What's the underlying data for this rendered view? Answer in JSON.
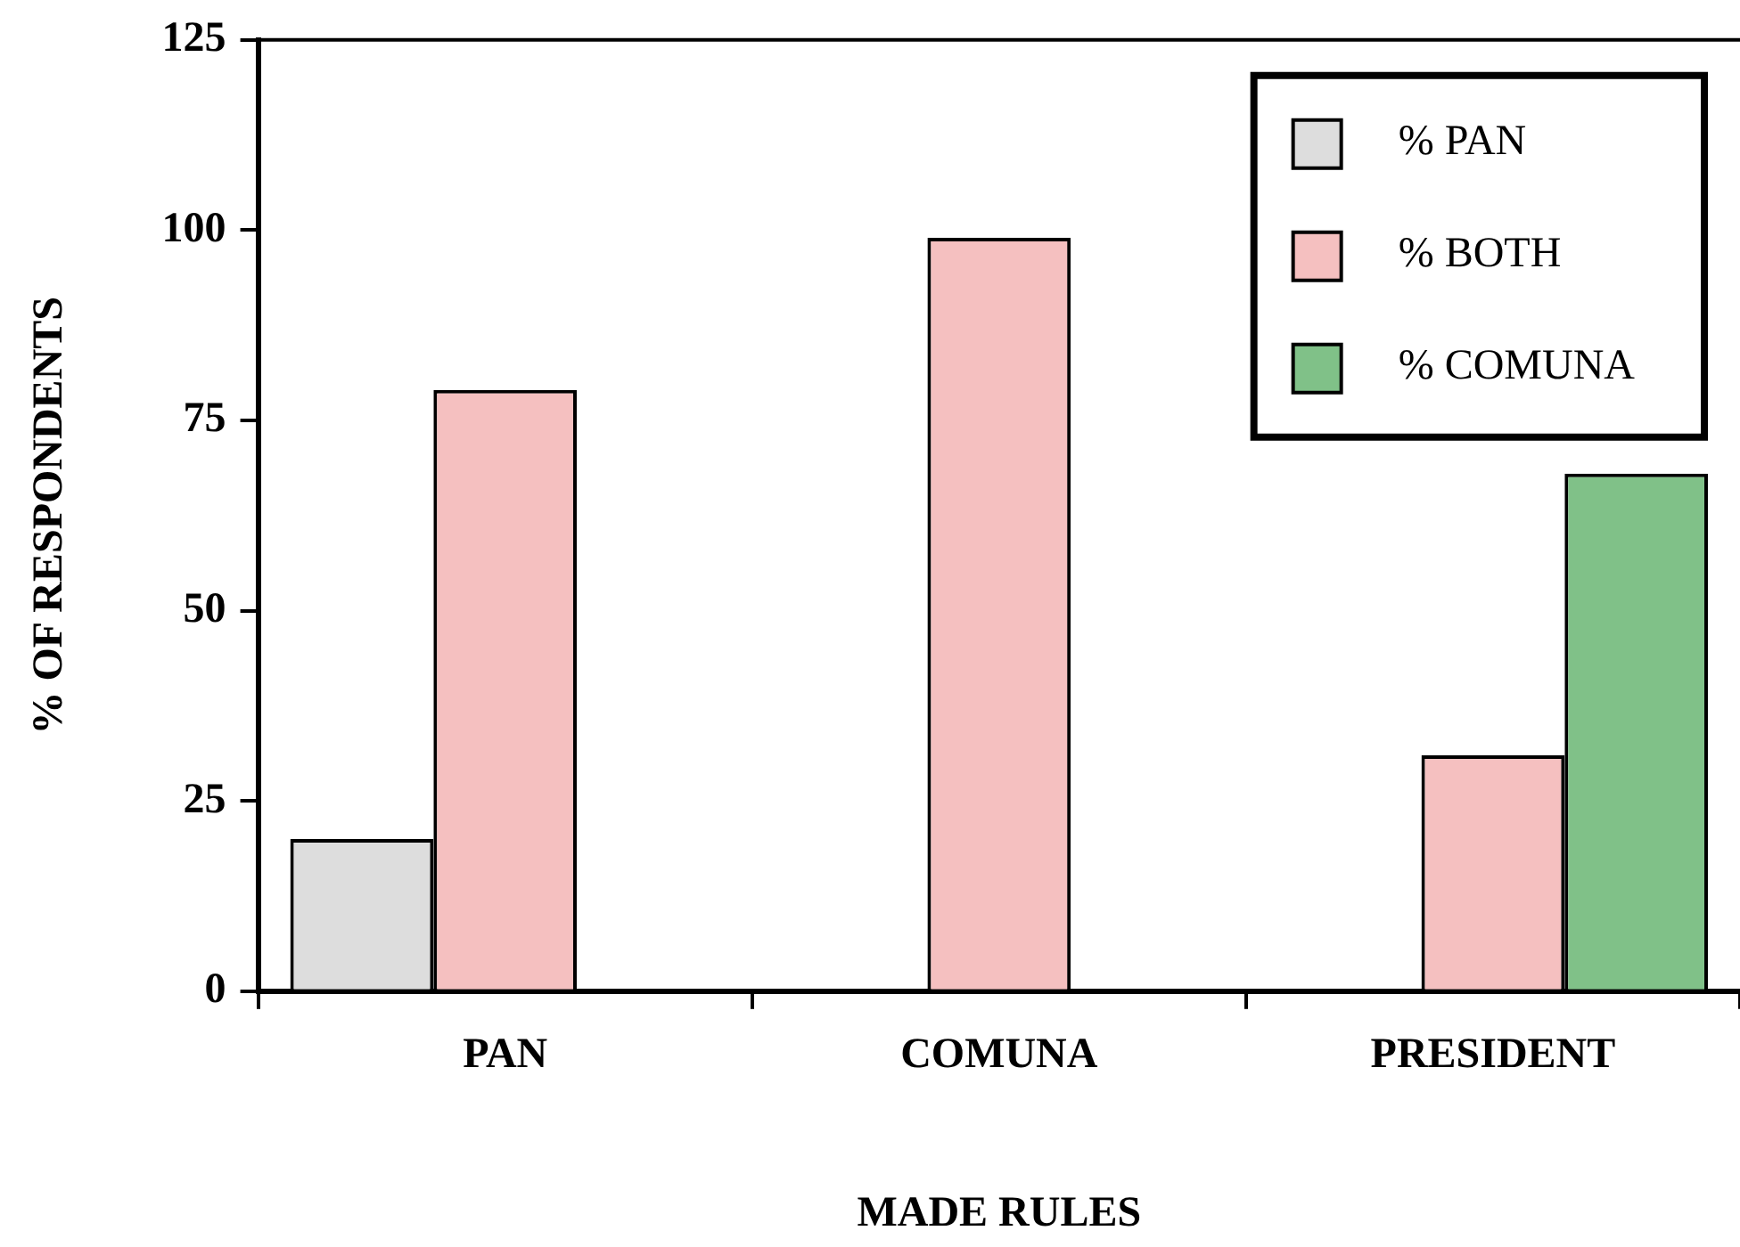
{
  "chart_data": {
    "type": "bar",
    "xlabel": "MADE RULES",
    "ylabel": "% OF RESPONDENTS",
    "categories": [
      "PAN",
      "COMUNA",
      "PRESIDENT"
    ],
    "series": [
      {
        "name": "% PAN",
        "color": "#dddddd",
        "values": [
          20,
          null,
          null
        ]
      },
      {
        "name": "% BOTH",
        "color": "#f5c0c0",
        "values": [
          79,
          99,
          31
        ]
      },
      {
        "name": "% COMUNA",
        "color": "#80c188",
        "values": [
          null,
          null,
          68
        ]
      }
    ],
    "ylim": [
      0,
      125
    ],
    "yticks": [
      0,
      25,
      50,
      75,
      100,
      125
    ],
    "grid": false,
    "legend": "top right"
  }
}
